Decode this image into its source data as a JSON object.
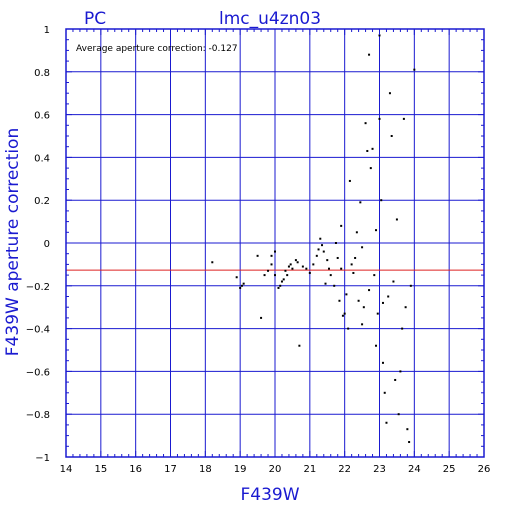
{
  "chart_data": {
    "type": "scatter",
    "title": "lmc_u4zn03",
    "subtitle": "PC",
    "annotation": "Average aperture correction: -0.127",
    "xlabel": "F439W",
    "ylabel": "F439W aperture correction",
    "xlim": [
      14,
      26
    ],
    "ylim": [
      -1,
      1
    ],
    "xticks": [
      "14",
      "15",
      "16",
      "17",
      "18",
      "19",
      "20",
      "21",
      "22",
      "23",
      "24",
      "25",
      "26"
    ],
    "yticks": [
      "−1",
      "−0.8",
      "−0.6",
      "−0.4",
      "−0.2",
      "0",
      "0.2",
      "0.4",
      "0.6",
      "0.8",
      "1"
    ],
    "grid": true,
    "reference_line": -0.127,
    "colors": {
      "axis": "#1a1ad0",
      "grid": "#1a1ad0",
      "points": "#000000",
      "reference": "#dd2222"
    },
    "points": [
      [
        18.2,
        -0.09
      ],
      [
        18.9,
        -0.16
      ],
      [
        19.0,
        -0.21
      ],
      [
        19.05,
        -0.2
      ],
      [
        19.1,
        -0.19
      ],
      [
        19.5,
        -0.06
      ],
      [
        19.6,
        -0.35
      ],
      [
        19.7,
        -0.15
      ],
      [
        19.8,
        -0.13
      ],
      [
        19.9,
        -0.1
      ],
      [
        19.9,
        -0.06
      ],
      [
        20.0,
        -0.15
      ],
      [
        20.0,
        -0.04
      ],
      [
        20.1,
        -0.21
      ],
      [
        20.15,
        -0.2
      ],
      [
        20.2,
        -0.18
      ],
      [
        20.25,
        -0.17
      ],
      [
        20.3,
        -0.13
      ],
      [
        20.35,
        -0.15
      ],
      [
        20.4,
        -0.11
      ],
      [
        20.45,
        -0.1
      ],
      [
        20.5,
        -0.12
      ],
      [
        20.6,
        -0.08
      ],
      [
        20.65,
        -0.09
      ],
      [
        20.7,
        -0.48
      ],
      [
        20.8,
        -0.11
      ],
      [
        20.9,
        -0.12
      ],
      [
        21.0,
        -0.14
      ],
      [
        21.1,
        -0.1
      ],
      [
        21.2,
        -0.06
      ],
      [
        21.25,
        -0.03
      ],
      [
        21.3,
        0.02
      ],
      [
        21.35,
        -0.01
      ],
      [
        21.4,
        -0.04
      ],
      [
        21.45,
        -0.19
      ],
      [
        21.5,
        -0.08
      ],
      [
        21.55,
        -0.12
      ],
      [
        21.6,
        -0.15
      ],
      [
        21.7,
        -0.2
      ],
      [
        21.75,
        0.0
      ],
      [
        21.8,
        -0.07
      ],
      [
        21.85,
        -0.27
      ],
      [
        21.9,
        -0.12
      ],
      [
        21.9,
        0.08
      ],
      [
        21.95,
        -0.34
      ],
      [
        22.0,
        -0.33
      ],
      [
        22.05,
        -0.24
      ],
      [
        22.1,
        -0.4
      ],
      [
        22.15,
        0.29
      ],
      [
        22.2,
        -0.1
      ],
      [
        22.25,
        -0.14
      ],
      [
        22.3,
        -0.07
      ],
      [
        22.35,
        0.05
      ],
      [
        22.4,
        -0.27
      ],
      [
        22.45,
        0.19
      ],
      [
        22.5,
        -0.02
      ],
      [
        22.5,
        -0.38
      ],
      [
        22.55,
        -0.3
      ],
      [
        22.6,
        0.56
      ],
      [
        22.65,
        0.43
      ],
      [
        22.7,
        -0.22
      ],
      [
        22.7,
        0.88
      ],
      [
        22.75,
        0.35
      ],
      [
        22.8,
        0.44
      ],
      [
        22.85,
        -0.15
      ],
      [
        22.9,
        -0.48
      ],
      [
        22.9,
        0.06
      ],
      [
        22.95,
        -0.33
      ],
      [
        23.0,
        0.58
      ],
      [
        23.0,
        0.97
      ],
      [
        23.05,
        0.2
      ],
      [
        23.1,
        -0.28
      ],
      [
        23.1,
        -0.56
      ],
      [
        23.15,
        -0.7
      ],
      [
        23.2,
        -0.84
      ],
      [
        23.25,
        -0.25
      ],
      [
        23.3,
        0.7
      ],
      [
        23.35,
        0.5
      ],
      [
        23.4,
        -0.18
      ],
      [
        23.45,
        -0.64
      ],
      [
        23.5,
        0.11
      ],
      [
        23.55,
        -0.8
      ],
      [
        23.6,
        -0.6
      ],
      [
        23.65,
        -0.4
      ],
      [
        23.7,
        0.58
      ],
      [
        23.75,
        -0.3
      ],
      [
        23.8,
        -0.87
      ],
      [
        23.85,
        -0.93
      ],
      [
        23.9,
        -0.2
      ],
      [
        24.0,
        0.81
      ]
    ]
  }
}
